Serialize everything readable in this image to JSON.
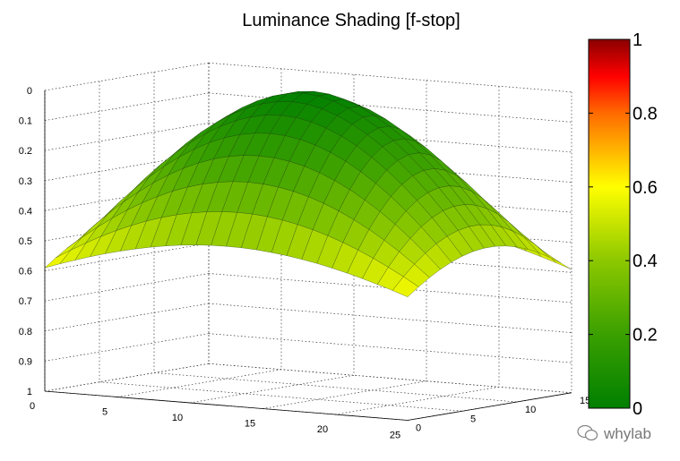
{
  "chart_data": {
    "type": "surface",
    "title": "Luminance Shading [f-stop]",
    "x": {
      "range": [
        0,
        25
      ],
      "ticks": [
        "0",
        "5",
        "10",
        "15",
        "20",
        "25"
      ]
    },
    "y": {
      "range": [
        0,
        15
      ],
      "ticks": [
        "0",
        "5",
        "10",
        "15"
      ]
    },
    "z": {
      "range": [
        0,
        1
      ],
      "reversed": true,
      "ticks": [
        "0",
        "0.1",
        "0.2",
        "0.3",
        "0.4",
        "0.5",
        "0.6",
        "0.7",
        "0.8",
        "0.9",
        "1"
      ]
    },
    "grid": {
      "cols": 25,
      "rows": 16
    },
    "surface": {
      "peak": {
        "x": 12.5,
        "y": 7.5,
        "value": 0.0
      },
      "edge_mid_value": 0.47,
      "corner_value": 0.59,
      "shape": "smooth dome, shading increasing toward the borders"
    },
    "colorbar": {
      "ticks": [
        "0",
        "0.2",
        "0.4",
        "0.6",
        "0.8",
        "1"
      ],
      "colors": [
        "#007f00",
        "#80c000",
        "#ffff00",
        "#ff8000",
        "#ff0000",
        "#8b0000"
      ]
    },
    "grid_on": true
  },
  "watermark": "whylab"
}
